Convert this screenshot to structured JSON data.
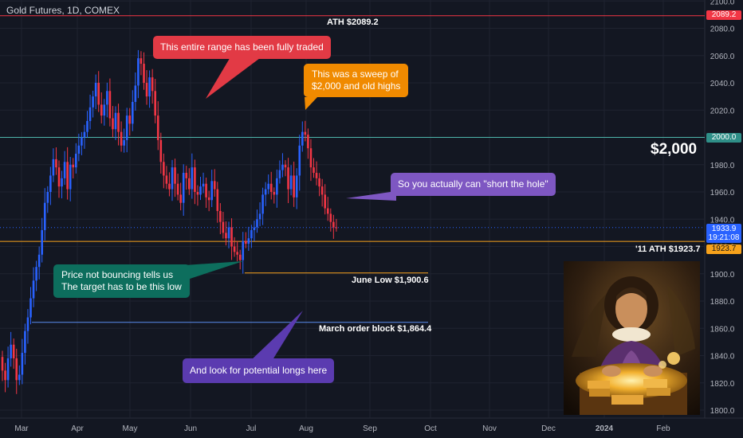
{
  "header": {
    "title": "Gold Futures, 1D, COMEX"
  },
  "colors": {
    "bg": "#131722",
    "up": "#2962ff",
    "down": "#f23645",
    "grid": "#1f2330",
    "axis_text": "#b2b5be",
    "ath": "#f23645",
    "two_k": "#4db6ac",
    "ath11": "#f7a21b",
    "june": "#f7a21b",
    "march": "#5b8def"
  },
  "chart_data": {
    "type": "candlestick",
    "symbol": "Gold Futures",
    "interval": "1D",
    "exchange": "COMEX",
    "ylim": [
      1795,
      2100
    ],
    "y_ticks": [
      1800,
      1820,
      1840,
      1860,
      1880,
      1900,
      1920,
      1940,
      1960,
      1980,
      2000,
      2020,
      2040,
      2060,
      2080,
      2100
    ],
    "x_ticks": [
      "Mar",
      "Apr",
      "May",
      "Jun",
      "Jul",
      "Aug",
      "Sep",
      "Oct",
      "Nov",
      "Dec",
      "2024",
      "Feb"
    ],
    "levels": [
      {
        "name": "ath",
        "value": 2089.2,
        "tag": "2089.2",
        "label": "ATH $2089.2"
      },
      {
        "name": "two_k",
        "value": 2000.0,
        "tag": "2000.0",
        "label": "$2,000"
      },
      {
        "name": "ath11",
        "value": 1923.7,
        "tag": "1923.7",
        "label": "'11 ATH $1923.7"
      },
      {
        "name": "june",
        "value": 1900.6,
        "label": "June Low $1,900.6"
      },
      {
        "name": "march",
        "value": 1864.4,
        "label": "March order block $1,864.4"
      }
    ],
    "last_price": {
      "value": 1933.9,
      "tag": "1933.9",
      "countdown": "19:21:08"
    },
    "closes": [
      1829,
      1822,
      1838,
      1848,
      1838,
      1822,
      1826,
      1842,
      1858,
      1868,
      1882,
      1895,
      1905,
      1914,
      1932,
      1952,
      1960,
      1972,
      1984,
      1978,
      1964,
      1970,
      1982,
      1962,
      1980,
      1978,
      1988,
      1994,
      2000,
      2004,
      2012,
      2022,
      2030,
      2040,
      2024,
      2016,
      2024,
      2034,
      2014,
      2006,
      2018,
      2004,
      1994,
      1998,
      2016,
      2010,
      2026,
      2038,
      2058,
      2054,
      2040,
      2030,
      2044,
      2034,
      2016,
      1998,
      1982,
      1972,
      1966,
      1962,
      1978,
      1966,
      1958,
      1952,
      1974,
      1970,
      1962,
      1978,
      1960,
      1958,
      1964,
      1966,
      1956,
      1954,
      1968,
      1962,
      1946,
      1938,
      1930,
      1926,
      1934,
      1920,
      1916,
      1914,
      1910,
      1924,
      1922,
      1926,
      1932,
      1934,
      1940,
      1944,
      1958,
      1962,
      1966,
      1960,
      1958,
      1970,
      1976,
      1980,
      1978,
      1962,
      1972,
      1956,
      1972,
      1994,
      2004,
      2002,
      1992,
      1978,
      1974,
      1970,
      1964,
      1958,
      1948,
      1944,
      1938,
      1934,
      1933.9
    ]
  },
  "annotations": {
    "a1": "This entire range has been fully traded",
    "a2_l1": "This was a sweep of",
    "a2_l2": "$2,000 and old highs",
    "a3": "So you actually can \"short the hole\"",
    "a4_l1": "Price not bouncing tells us",
    "a4_l2": "The target has to be this low",
    "a5": "And look for potential longs here"
  }
}
